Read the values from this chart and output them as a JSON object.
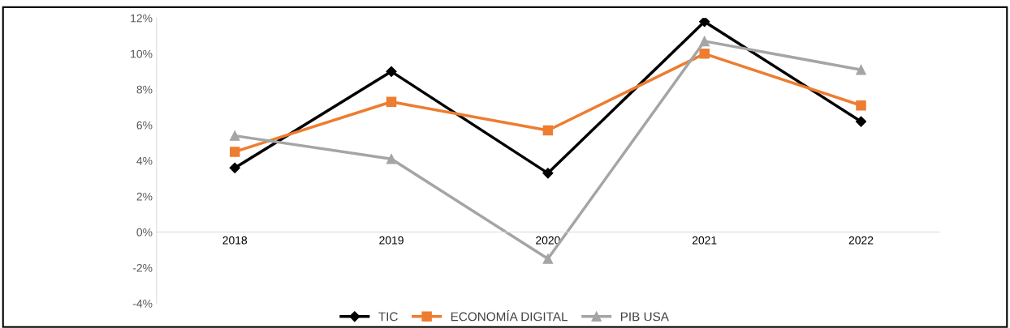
{
  "chart_data": {
    "type": "line",
    "categories": [
      "2018",
      "2019",
      "2020",
      "2021",
      "2022"
    ],
    "series": [
      {
        "name": "TIC",
        "color": "#000000",
        "marker": "diamond",
        "values": [
          3.6,
          9.0,
          3.3,
          11.8,
          6.2
        ]
      },
      {
        "name": "ECONOMÍA DIGITAL",
        "color": "#ed7d31",
        "marker": "square",
        "values": [
          4.5,
          7.3,
          5.7,
          10.0,
          7.1
        ]
      },
      {
        "name": "PIB USA",
        "color": "#a5a5a5",
        "marker": "triangle",
        "values": [
          5.4,
          4.1,
          -1.5,
          10.7,
          9.1
        ]
      }
    ],
    "ylim": [
      -4,
      12
    ],
    "yticks": [
      {
        "value": -4,
        "label": "-4%"
      },
      {
        "value": -2,
        "label": "-2%"
      },
      {
        "value": 0,
        "label": "0%"
      },
      {
        "value": 2,
        "label": "2%"
      },
      {
        "value": 4,
        "label": "4%"
      },
      {
        "value": 6,
        "label": "6%"
      },
      {
        "value": 8,
        "label": "8%"
      },
      {
        "value": 10,
        "label": "10%"
      },
      {
        "value": 12,
        "label": "12%"
      }
    ],
    "grid": false,
    "legend": "bottom",
    "line_style": "solid"
  }
}
